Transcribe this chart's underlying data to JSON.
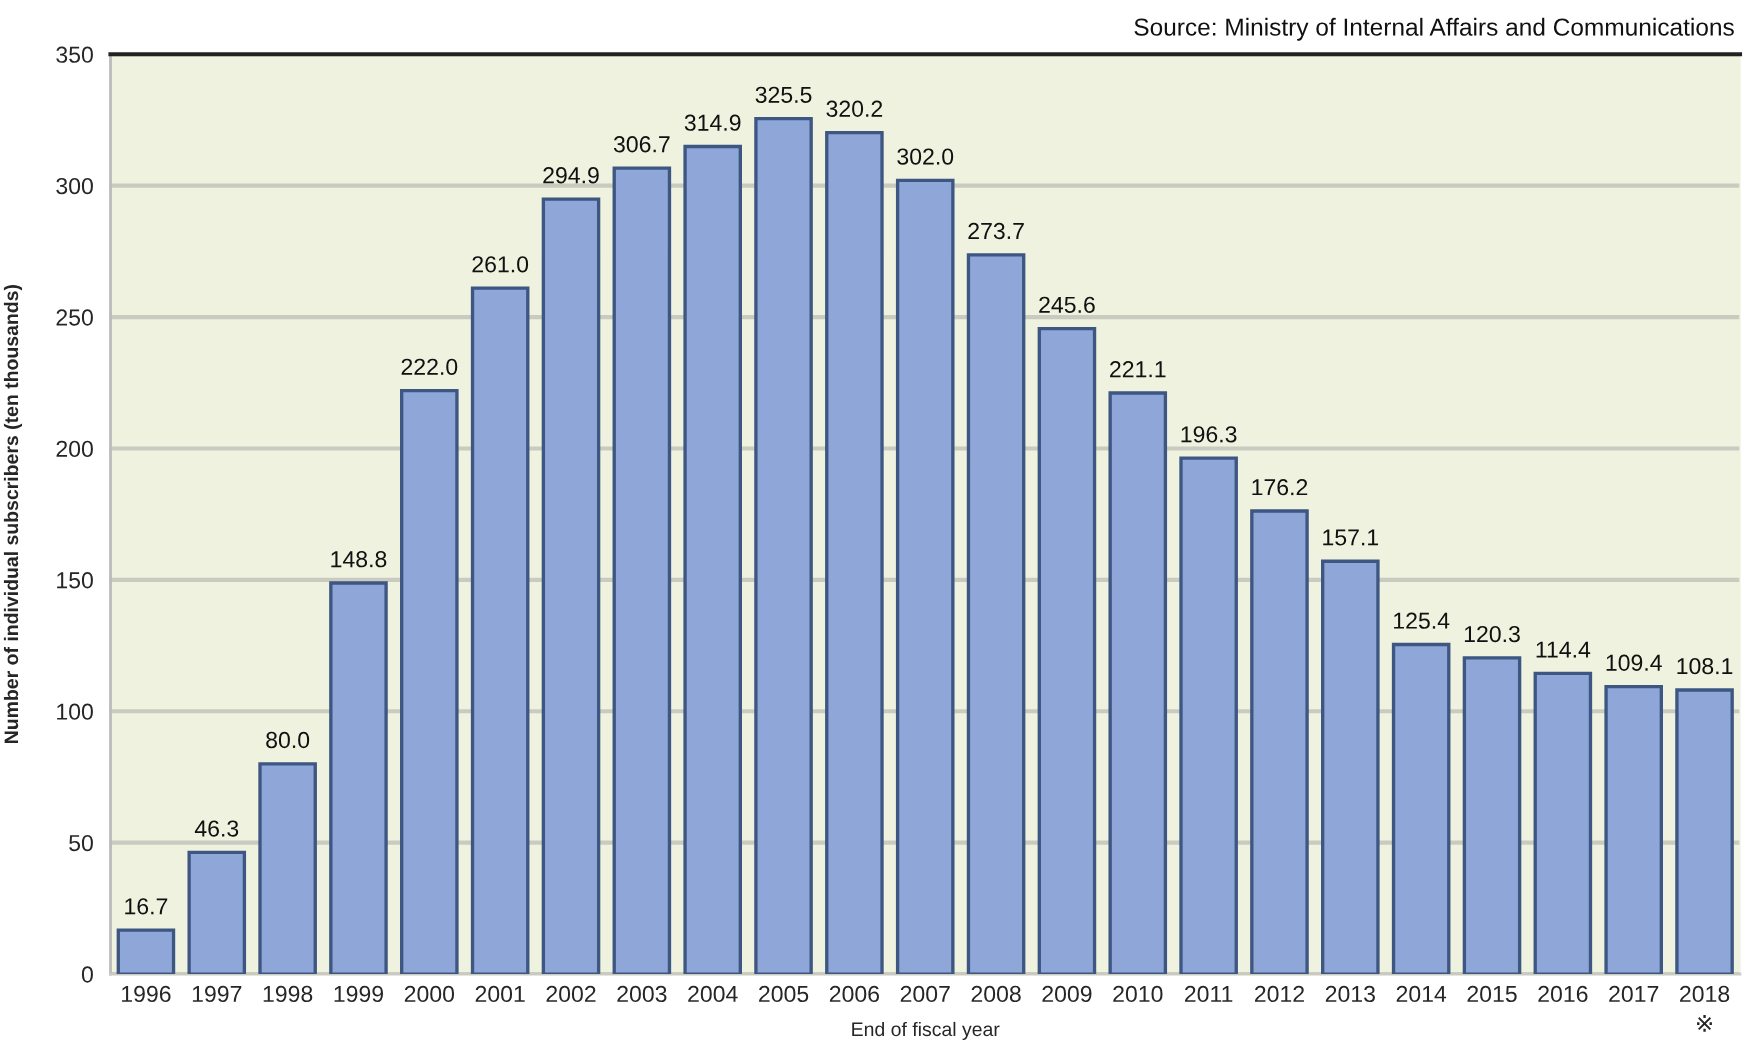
{
  "chart_data": {
    "type": "bar",
    "xlabel": "End of fiscal year",
    "ylabel": "Number of individual subscribers (ten thousands)",
    "annotations": [
      "Source: Ministry of Internal Affairs and Communications"
    ],
    "categories": [
      "1996",
      "1997",
      "1998",
      "1999",
      "2000",
      "2001",
      "2002",
      "2003",
      "2004",
      "2005",
      "2006",
      "2007",
      "2008",
      "2009",
      "2010",
      "2011",
      "2012",
      "2013",
      "2014",
      "2015",
      "2016",
      "2017",
      "2018\n※"
    ],
    "values": [
      16.7,
      46.3,
      80.0,
      148.8,
      222.0,
      261.0,
      294.9,
      306.7,
      314.9,
      325.5,
      320.2,
      302.0,
      273.7,
      245.6,
      221.1,
      196.3,
      176.2,
      157.1,
      125.4,
      120.3,
      114.4,
      109.4,
      108.1
    ],
    "value_labels": [
      "16.7",
      "46.3",
      "80.0",
      "148.8",
      "222.0",
      "261.0",
      "294.9",
      "306.7",
      "314.9",
      "325.5",
      "320.2",
      "302.0",
      "273.7",
      "245.6",
      "221.1",
      "196.3",
      "176.2",
      "157.1",
      "125.4",
      "120.3",
      "114.4",
      "109.4",
      "108.1"
    ],
    "color": "#8ea6d8",
    "ylim": [
      0,
      350
    ],
    "yticks": [
      0,
      50,
      100,
      150,
      200,
      250,
      300,
      350
    ],
    "grid": "y"
  }
}
